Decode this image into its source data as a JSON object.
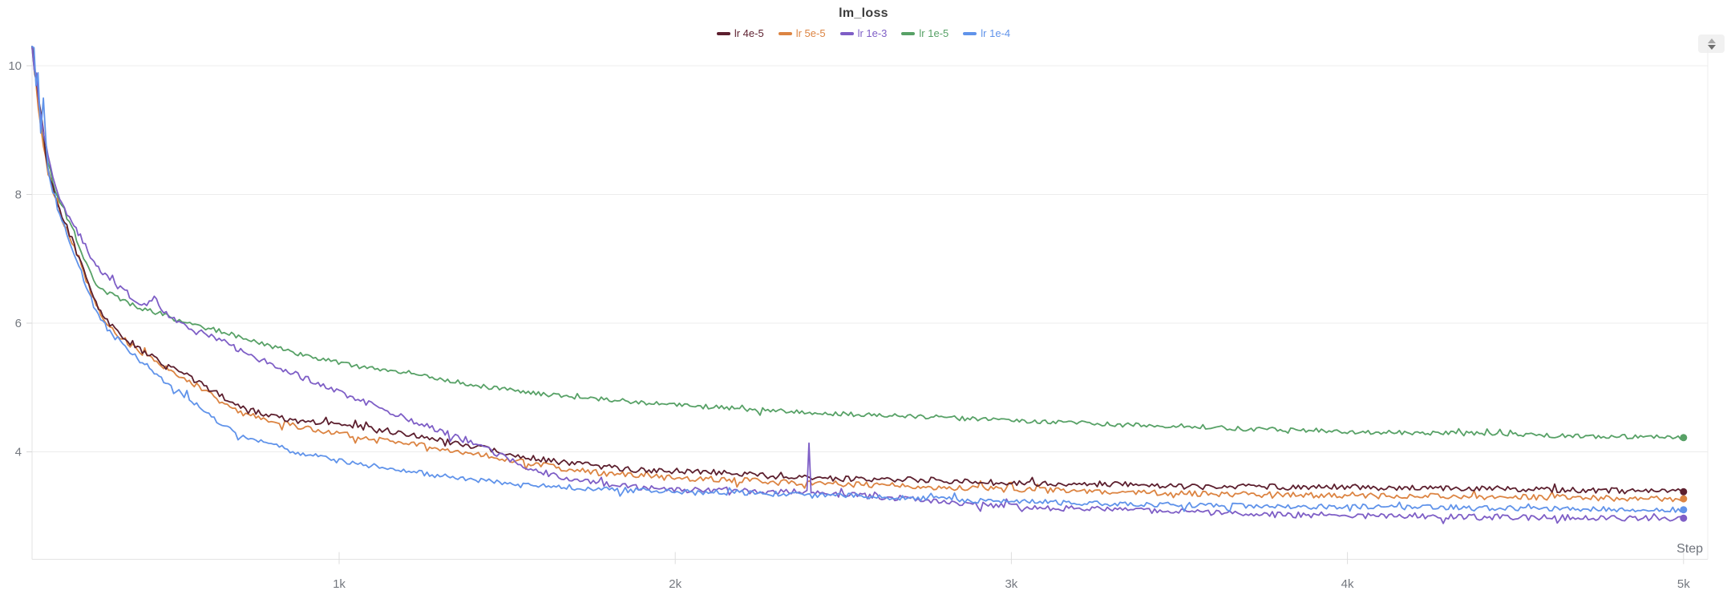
{
  "panel": {
    "title": "lm_loss"
  },
  "controls": {
    "collapse_button": "caret-up-down"
  },
  "chart_data": {
    "type": "line",
    "title": "lm_loss",
    "xlabel": "Step",
    "ylabel": "",
    "grid": "horizontal",
    "legend_position": "top-center",
    "x_range": [
      86,
      5000
    ],
    "ylim": [
      2.34,
      10.33
    ],
    "x_ticks": [
      {
        "step": 1000,
        "label": "1k"
      },
      {
        "step": 2000,
        "label": "2k"
      },
      {
        "step": 3000,
        "label": "3k"
      },
      {
        "step": 4000,
        "label": "4k"
      },
      {
        "step": 5000,
        "label": "5k"
      }
    ],
    "y_ticks": [
      {
        "value": 10,
        "label": "10"
      },
      {
        "value": 8,
        "label": "8"
      },
      {
        "value": 6,
        "label": "6"
      },
      {
        "value": 4,
        "label": "4"
      }
    ],
    "series": [
      {
        "name": "lr 1e-5",
        "color": "#57a166",
        "noise": 0.035,
        "early_noise": {
          "until": 125,
          "amp": 0.1
        },
        "end_marker": true,
        "final_value": 4.22,
        "points": [
          [
            86,
            10.3
          ],
          [
            100,
            9.7
          ],
          [
            115,
            9.0
          ],
          [
            134,
            8.5
          ],
          [
            155,
            8.05
          ],
          [
            175,
            7.8
          ],
          [
            205,
            7.5
          ],
          [
            240,
            7.0
          ],
          [
            277,
            6.62
          ],
          [
            310,
            6.48
          ],
          [
            349,
            6.37
          ],
          [
            400,
            6.25
          ],
          [
            468,
            6.15
          ],
          [
            509,
            6.07
          ],
          [
            587,
            5.95
          ],
          [
            666,
            5.85
          ],
          [
            707,
            5.78
          ],
          [
            770,
            5.68
          ],
          [
            826,
            5.6
          ],
          [
            885,
            5.52
          ],
          [
            945,
            5.45
          ],
          [
            1060,
            5.32
          ],
          [
            1184,
            5.25
          ],
          [
            1300,
            5.14
          ],
          [
            1422,
            5.02
          ],
          [
            1540,
            4.94
          ],
          [
            1661,
            4.87
          ],
          [
            1780,
            4.82
          ],
          [
            1899,
            4.77
          ],
          [
            2020,
            4.72
          ],
          [
            2138,
            4.69
          ],
          [
            2260,
            4.65
          ],
          [
            2377,
            4.62
          ],
          [
            2500,
            4.59
          ],
          [
            2615,
            4.56
          ],
          [
            2730,
            4.55
          ],
          [
            2854,
            4.52
          ],
          [
            2970,
            4.5
          ],
          [
            3093,
            4.47
          ],
          [
            3210,
            4.45
          ],
          [
            3331,
            4.42
          ],
          [
            3450,
            4.41
          ],
          [
            3570,
            4.39
          ],
          [
            3690,
            4.36
          ],
          [
            3808,
            4.34
          ],
          [
            3930,
            4.33
          ],
          [
            4046,
            4.31
          ],
          [
            4170,
            4.3
          ],
          [
            4285,
            4.29
          ],
          [
            4400,
            4.28
          ],
          [
            4523,
            4.26
          ],
          [
            4640,
            4.25
          ],
          [
            4762,
            4.24
          ],
          [
            4880,
            4.23
          ],
          [
            5000,
            4.22
          ]
        ]
      },
      {
        "name": "lr 5e-5",
        "color": "#dc8442",
        "noise": 0.045,
        "early_noise": {
          "until": 125,
          "amp": 0.12
        },
        "end_marker": true,
        "final_value": 3.27,
        "points": [
          [
            86,
            10.3
          ],
          [
            95,
            9.85
          ],
          [
            105,
            9.35
          ],
          [
            120,
            8.8
          ],
          [
            134,
            8.35
          ],
          [
            155,
            7.92
          ],
          [
            175,
            7.62
          ],
          [
            205,
            7.26
          ],
          [
            240,
            6.77
          ],
          [
            277,
            6.27
          ],
          [
            310,
            6.0
          ],
          [
            349,
            5.79
          ],
          [
            400,
            5.58
          ],
          [
            450,
            5.44
          ],
          [
            492,
            5.28
          ],
          [
            547,
            5.13
          ],
          [
            620,
            4.88
          ],
          [
            707,
            4.6
          ],
          [
            790,
            4.5
          ],
          [
            870,
            4.4
          ],
          [
            945,
            4.33
          ],
          [
            1064,
            4.23
          ],
          [
            1184,
            4.15
          ],
          [
            1300,
            4.05
          ],
          [
            1422,
            3.96
          ],
          [
            1540,
            3.85
          ],
          [
            1661,
            3.75
          ],
          [
            1780,
            3.67
          ],
          [
            1899,
            3.62
          ],
          [
            2020,
            3.59
          ],
          [
            2138,
            3.57
          ],
          [
            2260,
            3.54
          ],
          [
            2377,
            3.52
          ],
          [
            2500,
            3.5
          ],
          [
            2615,
            3.48
          ],
          [
            2730,
            3.46
          ],
          [
            2854,
            3.44
          ],
          [
            2970,
            3.42
          ],
          [
            3093,
            3.4
          ],
          [
            3210,
            3.39
          ],
          [
            3331,
            3.38
          ],
          [
            3450,
            3.36
          ],
          [
            3570,
            3.35
          ],
          [
            3690,
            3.34
          ],
          [
            3808,
            3.33
          ],
          [
            3930,
            3.33
          ],
          [
            4046,
            3.32
          ],
          [
            4170,
            3.31
          ],
          [
            4285,
            3.31
          ],
          [
            4400,
            3.3
          ],
          [
            4523,
            3.3
          ],
          [
            4640,
            3.29
          ],
          [
            4762,
            3.28
          ],
          [
            4880,
            3.27
          ],
          [
            5000,
            3.27
          ]
        ]
      },
      {
        "name": "lr 4e-5",
        "color": "#5c1f2e",
        "noise": 0.045,
        "early_noise": {
          "until": 125,
          "amp": 0.12
        },
        "end_marker": true,
        "final_value": 3.38,
        "points": [
          [
            86,
            10.3
          ],
          [
            95,
            9.9
          ],
          [
            105,
            9.45
          ],
          [
            120,
            8.9
          ],
          [
            134,
            8.4
          ],
          [
            155,
            7.98
          ],
          [
            175,
            7.68
          ],
          [
            205,
            7.3
          ],
          [
            240,
            6.8
          ],
          [
            277,
            6.3
          ],
          [
            310,
            6.05
          ],
          [
            349,
            5.8
          ],
          [
            400,
            5.62
          ],
          [
            450,
            5.48
          ],
          [
            492,
            5.32
          ],
          [
            547,
            5.18
          ],
          [
            620,
            4.95
          ],
          [
            707,
            4.7
          ],
          [
            790,
            4.57
          ],
          [
            870,
            4.49
          ],
          [
            945,
            4.44
          ],
          [
            1064,
            4.38
          ],
          [
            1184,
            4.28
          ],
          [
            1300,
            4.18
          ],
          [
            1422,
            4.07
          ],
          [
            1540,
            3.94
          ],
          [
            1661,
            3.84
          ],
          [
            1780,
            3.77
          ],
          [
            1899,
            3.72
          ],
          [
            2020,
            3.7
          ],
          [
            2138,
            3.68
          ],
          [
            2260,
            3.63
          ],
          [
            2377,
            3.6
          ],
          [
            2500,
            3.58
          ],
          [
            2615,
            3.56
          ],
          [
            2730,
            3.57
          ],
          [
            2854,
            3.54
          ],
          [
            2970,
            3.52
          ],
          [
            3093,
            3.51
          ],
          [
            3210,
            3.5
          ],
          [
            3331,
            3.5
          ],
          [
            3450,
            3.47
          ],
          [
            3570,
            3.46
          ],
          [
            3690,
            3.47
          ],
          [
            3808,
            3.45
          ],
          [
            3930,
            3.46
          ],
          [
            4046,
            3.45
          ],
          [
            4170,
            3.44
          ],
          [
            4285,
            3.44
          ],
          [
            4400,
            3.43
          ],
          [
            4523,
            3.42
          ],
          [
            4640,
            3.41
          ],
          [
            4762,
            3.4
          ],
          [
            4880,
            3.39
          ],
          [
            5000,
            3.38
          ]
        ]
      },
      {
        "name": "lr 1e-3",
        "color": "#7e5ec6",
        "noise": 0.045,
        "early_noise": {
          "until": 125,
          "amp": 0.12
        },
        "end_marker": true,
        "final_value": 2.97,
        "spike_step": 2398,
        "points": [
          [
            86,
            10.3
          ],
          [
            100,
            9.6
          ],
          [
            115,
            9.1
          ],
          [
            134,
            8.6
          ],
          [
            155,
            8.15
          ],
          [
            175,
            7.85
          ],
          [
            205,
            7.55
          ],
          [
            230,
            7.35
          ],
          [
            260,
            7.05
          ],
          [
            277,
            6.9
          ],
          [
            310,
            6.72
          ],
          [
            349,
            6.56
          ],
          [
            390,
            6.36
          ],
          [
            420,
            6.27
          ],
          [
            450,
            6.42
          ],
          [
            470,
            6.2
          ],
          [
            509,
            6.07
          ],
          [
            560,
            5.92
          ],
          [
            620,
            5.79
          ],
          [
            666,
            5.7
          ],
          [
            707,
            5.56
          ],
          [
            770,
            5.42
          ],
          [
            826,
            5.3
          ],
          [
            885,
            5.17
          ],
          [
            945,
            5.05
          ],
          [
            1064,
            4.8
          ],
          [
            1184,
            4.55
          ],
          [
            1300,
            4.33
          ],
          [
            1422,
            4.08
          ],
          [
            1540,
            3.8
          ],
          [
            1661,
            3.59
          ],
          [
            1780,
            3.5
          ],
          [
            1899,
            3.44
          ],
          [
            2020,
            3.4
          ],
          [
            2138,
            3.41
          ],
          [
            2260,
            3.38
          ],
          [
            2377,
            3.38
          ],
          [
            2392,
            3.37
          ],
          [
            2398,
            4.13
          ],
          [
            2404,
            3.36
          ],
          [
            2430,
            3.35
          ],
          [
            2550,
            3.32
          ],
          [
            2615,
            3.3
          ],
          [
            2730,
            3.26
          ],
          [
            2854,
            3.2
          ],
          [
            2970,
            3.16
          ],
          [
            3093,
            3.13
          ],
          [
            3210,
            3.12
          ],
          [
            3331,
            3.1
          ],
          [
            3450,
            3.08
          ],
          [
            3570,
            3.06
          ],
          [
            3690,
            3.04
          ],
          [
            3808,
            3.02
          ],
          [
            3930,
            3.02
          ],
          [
            4046,
            3.02
          ],
          [
            4170,
            3.01
          ],
          [
            4285,
            3.0
          ],
          [
            4400,
            2.99
          ],
          [
            4523,
            2.98
          ],
          [
            4640,
            2.98
          ],
          [
            4762,
            2.97
          ],
          [
            4880,
            2.97
          ],
          [
            5000,
            2.97
          ]
        ]
      },
      {
        "name": "lr 1e-4",
        "color": "#6093ea",
        "noise": 0.04,
        "early_noise": {
          "until": 135,
          "amp": 0.22
        },
        "end_marker": true,
        "final_value": 3.1,
        "points": [
          [
            86,
            10.3
          ],
          [
            92,
            10.1
          ],
          [
            98,
            9.5
          ],
          [
            104,
            9.9
          ],
          [
            112,
            9.1
          ],
          [
            120,
            9.4
          ],
          [
            128,
            8.7
          ],
          [
            134,
            8.3
          ],
          [
            155,
            7.9
          ],
          [
            175,
            7.6
          ],
          [
            205,
            7.18
          ],
          [
            240,
            6.68
          ],
          [
            277,
            6.18
          ],
          [
            310,
            5.92
          ],
          [
            349,
            5.71
          ],
          [
            400,
            5.45
          ],
          [
            450,
            5.25
          ],
          [
            492,
            5.04
          ],
          [
            547,
            4.85
          ],
          [
            620,
            4.55
          ],
          [
            707,
            4.24
          ],
          [
            790,
            4.12
          ],
          [
            870,
            4.0
          ],
          [
            945,
            3.92
          ],
          [
            1000,
            3.86
          ],
          [
            1064,
            3.8
          ],
          [
            1184,
            3.71
          ],
          [
            1300,
            3.63
          ],
          [
            1422,
            3.56
          ],
          [
            1540,
            3.5
          ],
          [
            1661,
            3.46
          ],
          [
            1780,
            3.42
          ],
          [
            1899,
            3.4
          ],
          [
            2020,
            3.38
          ],
          [
            2138,
            3.37
          ],
          [
            2260,
            3.36
          ],
          [
            2377,
            3.34
          ],
          [
            2500,
            3.32
          ],
          [
            2615,
            3.3
          ],
          [
            2730,
            3.28
          ],
          [
            2854,
            3.25
          ],
          [
            2970,
            3.23
          ],
          [
            3093,
            3.22
          ],
          [
            3210,
            3.2
          ],
          [
            3331,
            3.19
          ],
          [
            3450,
            3.18
          ],
          [
            3570,
            3.17
          ],
          [
            3690,
            3.16
          ],
          [
            3808,
            3.15
          ],
          [
            3930,
            3.15
          ],
          [
            4046,
            3.15
          ],
          [
            4170,
            3.14
          ],
          [
            4285,
            3.14
          ],
          [
            4400,
            3.13
          ],
          [
            4523,
            3.12
          ],
          [
            4640,
            3.12
          ],
          [
            4762,
            3.11
          ],
          [
            4880,
            3.1
          ],
          [
            5000,
            3.1
          ]
        ]
      }
    ],
    "legend_order": [
      "lr 4e-5",
      "lr 5e-5",
      "lr 1e-3",
      "lr 1e-5",
      "lr 1e-4"
    ]
  }
}
